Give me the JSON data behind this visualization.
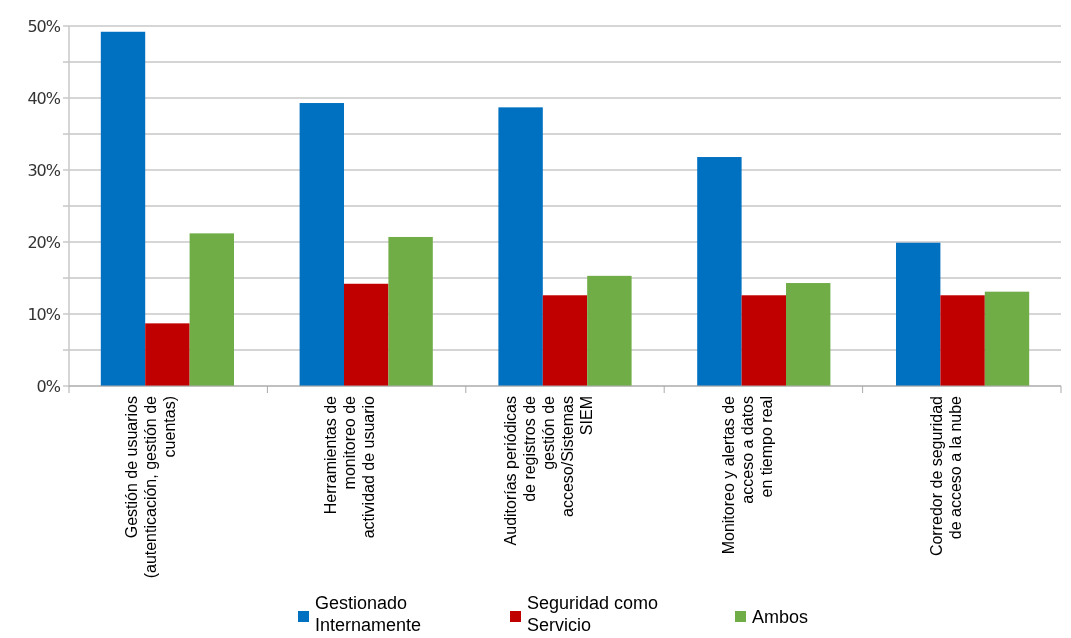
{
  "chart_data": {
    "type": "bar",
    "categories": [
      "Gestión de usuarios\n(autenticación, gestión de\ncuentas)",
      "Herramientas de\nmonitoreo de\nactividad de usuario",
      "Auditorías periódicas\nde registros de\ngestión de\nacceso/Sistemas\nSIEM",
      "Monitoreo y alertas de\nacceso a datos\nen tiempo real",
      "Corredor de seguridad\nde acceso a la nube"
    ],
    "series": [
      {
        "name": "Gestionado\nInternamente",
        "color": "#0070c0",
        "values": [
          49.2,
          39.3,
          38.7,
          31.8,
          19.9
        ]
      },
      {
        "name": "Seguridad como\nServicio",
        "color": "#c00000",
        "values": [
          8.7,
          14.2,
          12.6,
          12.6,
          12.6
        ]
      },
      {
        "name": "Ambos",
        "color": "#70ad47",
        "values": [
          21.2,
          20.7,
          15.3,
          14.3,
          13.1
        ]
      }
    ],
    "ylim": [
      0,
      50
    ],
    "yticks": [
      {
        "value": 0,
        "label": "0%"
      },
      {
        "value": 5,
        "label": null
      },
      {
        "value": 10,
        "label": "10%"
      },
      {
        "value": 15,
        "label": null
      },
      {
        "value": 20,
        "label": "20%"
      },
      {
        "value": 25,
        "label": null
      },
      {
        "value": 30,
        "label": "30%"
      },
      {
        "value": 35,
        "label": null
      },
      {
        "value": 40,
        "label": "40%"
      },
      {
        "value": 45,
        "label": null
      },
      {
        "value": 50,
        "label": "50%"
      }
    ],
    "grid": "y",
    "legend": "bottom"
  }
}
